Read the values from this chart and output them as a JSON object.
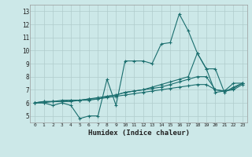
{
  "xlabel": "Humidex (Indice chaleur)",
  "bg_color": "#cce8e8",
  "grid_color": "#b0cccc",
  "line_color": "#1a6e6e",
  "xlim": [
    -0.5,
    23.5
  ],
  "ylim": [
    4.5,
    13.5
  ],
  "xticks": [
    0,
    1,
    2,
    3,
    4,
    5,
    6,
    7,
    8,
    9,
    10,
    11,
    12,
    13,
    14,
    15,
    16,
    17,
    18,
    19,
    20,
    21,
    22,
    23
  ],
  "yticks": [
    5,
    6,
    7,
    8,
    9,
    10,
    11,
    12,
    13
  ],
  "series": [
    [
      6.0,
      6.0,
      5.8,
      6.0,
      5.8,
      4.8,
      5.0,
      5.0,
      7.8,
      5.8,
      9.2,
      9.2,
      9.2,
      9.0,
      10.5,
      10.6,
      12.8,
      11.5,
      9.8,
      8.6,
      6.8,
      6.9,
      7.5,
      7.5
    ],
    [
      6.0,
      6.1,
      6.1,
      6.1,
      6.2,
      6.2,
      6.3,
      6.3,
      6.5,
      6.6,
      6.8,
      6.9,
      7.0,
      7.2,
      7.4,
      7.6,
      7.8,
      8.0,
      9.8,
      8.6,
      8.6,
      6.8,
      7.2,
      7.5
    ],
    [
      6.0,
      6.1,
      6.1,
      6.2,
      6.2,
      6.2,
      6.3,
      6.4,
      6.5,
      6.6,
      6.8,
      6.9,
      7.0,
      7.1,
      7.2,
      7.4,
      7.6,
      7.8,
      8.0,
      8.0,
      7.0,
      6.9,
      7.1,
      7.5
    ],
    [
      6.0,
      6.0,
      6.1,
      6.1,
      6.1,
      6.2,
      6.2,
      6.3,
      6.4,
      6.5,
      6.6,
      6.7,
      6.8,
      6.9,
      7.0,
      7.1,
      7.2,
      7.3,
      7.4,
      7.4,
      7.0,
      6.9,
      7.0,
      7.4
    ]
  ]
}
